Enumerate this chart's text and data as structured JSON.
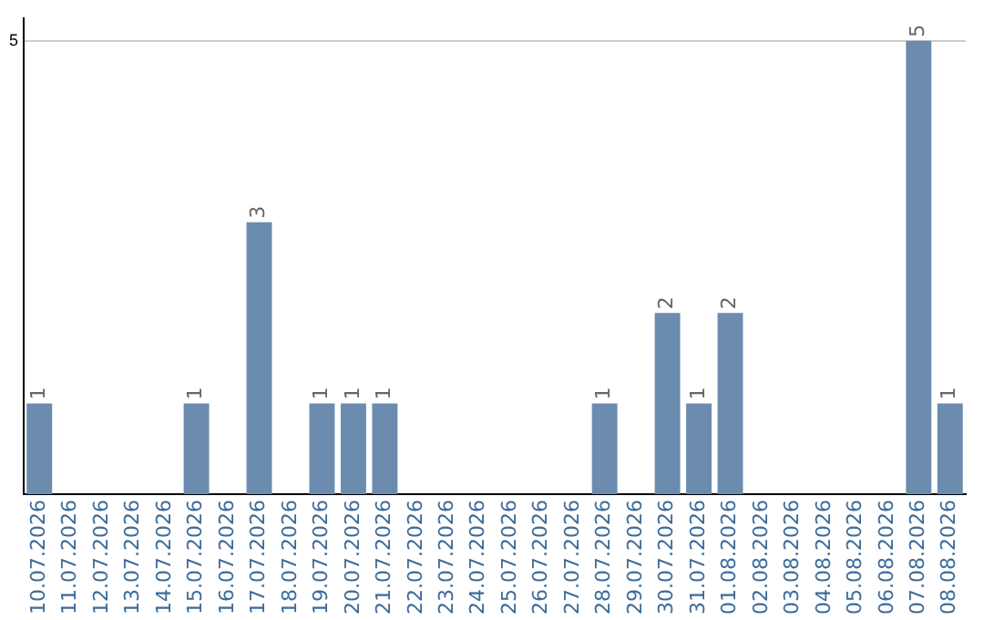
{
  "chart_data": {
    "type": "bar",
    "categories": [
      "10.07.2026",
      "11.07.2026",
      "12.07.2026",
      "13.07.2026",
      "14.07.2026",
      "15.07.2026",
      "16.07.2026",
      "17.07.2026",
      "18.07.2026",
      "19.07.2026",
      "20.07.2026",
      "21.07.2026",
      "22.07.2026",
      "23.07.2026",
      "24.07.2026",
      "25.07.2026",
      "26.07.2026",
      "27.07.2026",
      "28.07.2026",
      "29.07.2026",
      "30.07.2026",
      "31.07.2026",
      "01.08.2026",
      "02.08.2026",
      "03.08.2026",
      "04.08.2026",
      "05.08.2026",
      "06.08.2026",
      "07.08.2026",
      "08.08.2026"
    ],
    "values": [
      1,
      0,
      0,
      0,
      0,
      1,
      0,
      3,
      0,
      1,
      1,
      1,
      0,
      0,
      0,
      0,
      0,
      0,
      1,
      0,
      2,
      1,
      2,
      0,
      0,
      0,
      0,
      0,
      5,
      1
    ],
    "value_labels": [
      "1",
      null,
      null,
      null,
      null,
      "1",
      null,
      "3",
      null,
      "1",
      "1",
      "1",
      null,
      null,
      null,
      null,
      null,
      null,
      "1",
      null,
      "2",
      "1",
      "2",
      null,
      null,
      null,
      null,
      null,
      "5",
      "1"
    ],
    "color": "#6b8cae",
    "ylim": [
      0,
      5.25
    ],
    "yticks": [
      5
    ],
    "grid": "y",
    "legend": false
  }
}
